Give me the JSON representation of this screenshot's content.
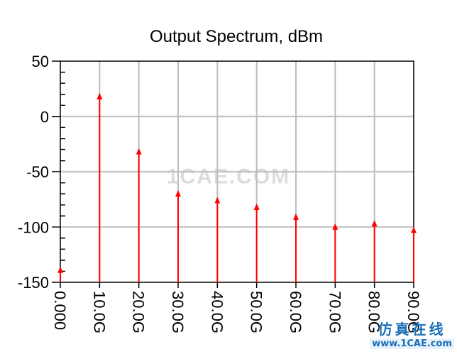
{
  "chart_data": {
    "type": "bar",
    "title": "Output Spectrum, dBm",
    "xlabel": "",
    "ylabel": "",
    "categories": [
      "0.000",
      "10.0G",
      "20.0G",
      "30.0G",
      "40.0G",
      "50.0G",
      "60.0G",
      "70.0G",
      "80.0G",
      "90.0G"
    ],
    "x": [
      0,
      10,
      20,
      30,
      40,
      50,
      60,
      70,
      80,
      90
    ],
    "values": [
      -137,
      20,
      -30,
      -68,
      -74,
      -80,
      -89,
      -98,
      -95,
      -101
    ],
    "ylim": [
      -150,
      50
    ],
    "xlim": [
      0,
      90
    ],
    "yticks": [
      "50",
      "0",
      "-50",
      "-100",
      "-150"
    ],
    "ytick_values": [
      50,
      0,
      -50,
      -100,
      -150
    ],
    "grid": true,
    "marker": "arrow-stem",
    "series_color": "#ff0000",
    "grid_color": "#bdbdbd"
  },
  "watermark": "1CAE.COM",
  "logo": {
    "cn": "仿真在线",
    "url": "www.1CAE.com"
  }
}
